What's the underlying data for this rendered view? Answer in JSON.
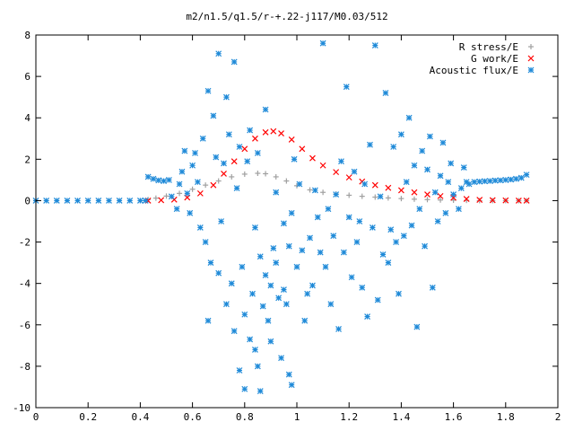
{
  "chart_data": {
    "type": "scatter",
    "title": "m2/n1.5/q1.5/r-+.22-j117/M0.03/512",
    "xlabel": "",
    "ylabel": "",
    "xlim": [
      0,
      2
    ],
    "ylim": [
      -10,
      8
    ],
    "xticks": [
      "0",
      "0.2",
      "0.4",
      "0.6",
      "0.8",
      "1",
      "1.2",
      "1.4",
      "1.6",
      "1.8",
      "2"
    ],
    "yticks": [
      "8",
      "6",
      "4",
      "2",
      "0",
      "-2",
      "-4",
      "-6",
      "-8",
      "-10"
    ],
    "legend_position": "top-right",
    "grid": false,
    "series": [
      {
        "name": "R stress/E",
        "marker": "plus",
        "color": "#a0a0a0",
        "points": [
          [
            0.43,
            0.05
          ],
          [
            0.46,
            0.12
          ],
          [
            0.5,
            0.22
          ],
          [
            0.55,
            0.35
          ],
          [
            0.6,
            0.55
          ],
          [
            0.65,
            0.75
          ],
          [
            0.7,
            0.95
          ],
          [
            0.75,
            1.15
          ],
          [
            0.8,
            1.28
          ],
          [
            0.85,
            1.32
          ],
          [
            0.88,
            1.3
          ],
          [
            0.92,
            1.15
          ],
          [
            0.96,
            0.95
          ],
          [
            1.0,
            0.72
          ],
          [
            1.05,
            0.52
          ],
          [
            1.1,
            0.4
          ],
          [
            1.15,
            0.32
          ],
          [
            1.2,
            0.26
          ],
          [
            1.25,
            0.21
          ],
          [
            1.3,
            0.17
          ],
          [
            1.35,
            0.13
          ],
          [
            1.4,
            0.1
          ],
          [
            1.45,
            0.07
          ],
          [
            1.5,
            0.05
          ],
          [
            1.55,
            0.03
          ],
          [
            1.6,
            0.02
          ],
          [
            1.65,
            0.01
          ],
          [
            1.7,
            0.0
          ],
          [
            1.75,
            0.0
          ],
          [
            1.8,
            0.0
          ],
          [
            1.85,
            0.0
          ],
          [
            1.88,
            0.0
          ]
        ]
      },
      {
        "name": "G work/E",
        "marker": "cross",
        "color": "#ff0000",
        "points": [
          [
            0.43,
            0.0
          ],
          [
            0.48,
            0.02
          ],
          [
            0.53,
            0.05
          ],
          [
            0.58,
            0.15
          ],
          [
            0.63,
            0.35
          ],
          [
            0.68,
            0.75
          ],
          [
            0.72,
            1.3
          ],
          [
            0.76,
            1.9
          ],
          [
            0.8,
            2.5
          ],
          [
            0.84,
            3.0
          ],
          [
            0.88,
            3.3
          ],
          [
            0.91,
            3.35
          ],
          [
            0.94,
            3.25
          ],
          [
            0.98,
            2.95
          ],
          [
            1.02,
            2.5
          ],
          [
            1.06,
            2.05
          ],
          [
            1.1,
            1.7
          ],
          [
            1.15,
            1.38
          ],
          [
            1.2,
            1.12
          ],
          [
            1.25,
            0.92
          ],
          [
            1.3,
            0.75
          ],
          [
            1.35,
            0.62
          ],
          [
            1.4,
            0.5
          ],
          [
            1.45,
            0.4
          ],
          [
            1.5,
            0.3
          ],
          [
            1.55,
            0.22
          ],
          [
            1.6,
            0.14
          ],
          [
            1.65,
            0.08
          ],
          [
            1.7,
            0.04
          ],
          [
            1.75,
            0.02
          ],
          [
            1.8,
            0.01
          ],
          [
            1.85,
            0.0
          ],
          [
            1.88,
            0.0
          ]
        ]
      },
      {
        "name": "Acoustic flux/E",
        "marker": "star",
        "color": "#1f8ad8",
        "points": [
          [
            0.0,
            0.0
          ],
          [
            0.04,
            0.0
          ],
          [
            0.08,
            0.0
          ],
          [
            0.12,
            0.0
          ],
          [
            0.16,
            0.0
          ],
          [
            0.2,
            0.0
          ],
          [
            0.24,
            0.0
          ],
          [
            0.28,
            0.0
          ],
          [
            0.32,
            0.0
          ],
          [
            0.36,
            0.0
          ],
          [
            0.4,
            0.0
          ],
          [
            0.42,
            0.0
          ],
          [
            0.43,
            1.15
          ],
          [
            0.45,
            1.05
          ],
          [
            0.47,
            0.98
          ],
          [
            0.49,
            0.95
          ],
          [
            0.51,
            1.0
          ],
          [
            0.52,
            0.2
          ],
          [
            0.54,
            -0.4
          ],
          [
            0.55,
            0.8
          ],
          [
            0.56,
            1.4
          ],
          [
            0.57,
            2.4
          ],
          [
            0.58,
            0.35
          ],
          [
            0.59,
            -0.6
          ],
          [
            0.6,
            1.7
          ],
          [
            0.61,
            2.3
          ],
          [
            0.62,
            0.9
          ],
          [
            0.63,
            -1.3
          ],
          [
            0.64,
            3.0
          ],
          [
            0.65,
            -2.0
          ],
          [
            0.66,
            5.3
          ],
          [
            0.66,
            -5.8
          ],
          [
            0.67,
            -3.0
          ],
          [
            0.68,
            4.1
          ],
          [
            0.69,
            2.1
          ],
          [
            0.7,
            7.1
          ],
          [
            0.7,
            -3.5
          ],
          [
            0.71,
            -1.0
          ],
          [
            0.72,
            1.8
          ],
          [
            0.73,
            5.0
          ],
          [
            0.73,
            -5.0
          ],
          [
            0.74,
            3.2
          ],
          [
            0.75,
            -4.0
          ],
          [
            0.76,
            6.7
          ],
          [
            0.76,
            -6.3
          ],
          [
            0.77,
            0.6
          ],
          [
            0.78,
            -8.2
          ],
          [
            0.78,
            2.6
          ],
          [
            0.79,
            -3.2
          ],
          [
            0.8,
            -9.1
          ],
          [
            0.8,
            -5.5
          ],
          [
            0.81,
            1.9
          ],
          [
            0.82,
            -6.7
          ],
          [
            0.82,
            3.4
          ],
          [
            0.83,
            -4.5
          ],
          [
            0.84,
            -1.3
          ],
          [
            0.84,
            -7.2
          ],
          [
            0.85,
            -8.0
          ],
          [
            0.85,
            2.3
          ],
          [
            0.86,
            -9.2
          ],
          [
            0.86,
            -2.7
          ],
          [
            0.87,
            -5.1
          ],
          [
            0.88,
            -3.6
          ],
          [
            0.88,
            4.4
          ],
          [
            0.89,
            -5.8
          ],
          [
            0.9,
            -6.8
          ],
          [
            0.9,
            -4.1
          ],
          [
            0.91,
            -2.3
          ],
          [
            0.92,
            0.4
          ],
          [
            0.92,
            -3.0
          ],
          [
            0.93,
            -4.7
          ],
          [
            0.94,
            -7.6
          ],
          [
            0.95,
            -4.3
          ],
          [
            0.95,
            -1.1
          ],
          [
            0.96,
            -5.0
          ],
          [
            0.97,
            -8.4
          ],
          [
            0.97,
            -2.2
          ],
          [
            0.98,
            -8.9
          ],
          [
            0.98,
            -0.6
          ],
          [
            0.99,
            2.0
          ],
          [
            1.0,
            -3.2
          ],
          [
            1.01,
            0.8
          ],
          [
            1.02,
            -2.4
          ],
          [
            1.03,
            -5.8
          ],
          [
            1.04,
            -4.5
          ],
          [
            1.05,
            -1.8
          ],
          [
            1.06,
            -4.1
          ],
          [
            1.07,
            0.5
          ],
          [
            1.08,
            -0.8
          ],
          [
            1.09,
            -2.5
          ],
          [
            1.1,
            7.6
          ],
          [
            1.11,
            -3.2
          ],
          [
            1.12,
            -0.4
          ],
          [
            1.13,
            -5.0
          ],
          [
            1.14,
            -1.7
          ],
          [
            1.15,
            0.3
          ],
          [
            1.16,
            -6.2
          ],
          [
            1.17,
            1.9
          ],
          [
            1.18,
            -2.5
          ],
          [
            1.19,
            5.5
          ],
          [
            1.2,
            -0.8
          ],
          [
            1.21,
            -3.7
          ],
          [
            1.22,
            1.4
          ],
          [
            1.23,
            -2.0
          ],
          [
            1.24,
            -1.0
          ],
          [
            1.25,
            -4.2
          ],
          [
            1.26,
            0.8
          ],
          [
            1.27,
            -5.6
          ],
          [
            1.28,
            2.7
          ],
          [
            1.29,
            -1.3
          ],
          [
            1.3,
            7.5
          ],
          [
            1.31,
            -4.8
          ],
          [
            1.32,
            0.2
          ],
          [
            1.33,
            -2.6
          ],
          [
            1.34,
            5.2
          ],
          [
            1.35,
            -3.0
          ],
          [
            1.36,
            -1.4
          ],
          [
            1.37,
            2.6
          ],
          [
            1.38,
            -2.0
          ],
          [
            1.39,
            -4.5
          ],
          [
            1.4,
            3.2
          ],
          [
            1.41,
            -1.7
          ],
          [
            1.42,
            0.9
          ],
          [
            1.43,
            4.0
          ],
          [
            1.44,
            -1.2
          ],
          [
            1.45,
            1.7
          ],
          [
            1.46,
            -6.1
          ],
          [
            1.47,
            -0.4
          ],
          [
            1.48,
            2.4
          ],
          [
            1.49,
            -2.2
          ],
          [
            1.5,
            1.5
          ],
          [
            1.51,
            3.1
          ],
          [
            1.52,
            -4.2
          ],
          [
            1.53,
            0.4
          ],
          [
            1.54,
            -1.0
          ],
          [
            1.55,
            1.2
          ],
          [
            1.56,
            2.8
          ],
          [
            1.57,
            -0.6
          ],
          [
            1.58,
            0.9
          ],
          [
            1.59,
            1.8
          ],
          [
            1.6,
            0.3
          ],
          [
            1.62,
            -0.4
          ],
          [
            1.63,
            0.6
          ],
          [
            1.64,
            1.6
          ],
          [
            1.65,
            0.9
          ],
          [
            1.66,
            0.8
          ],
          [
            1.68,
            0.9
          ],
          [
            1.7,
            0.92
          ],
          [
            1.72,
            0.94
          ],
          [
            1.74,
            0.95
          ],
          [
            1.76,
            0.97
          ],
          [
            1.78,
            0.98
          ],
          [
            1.8,
            1.0
          ],
          [
            1.82,
            1.02
          ],
          [
            1.84,
            1.05
          ],
          [
            1.86,
            1.1
          ],
          [
            1.88,
            1.25
          ]
        ]
      }
    ]
  }
}
